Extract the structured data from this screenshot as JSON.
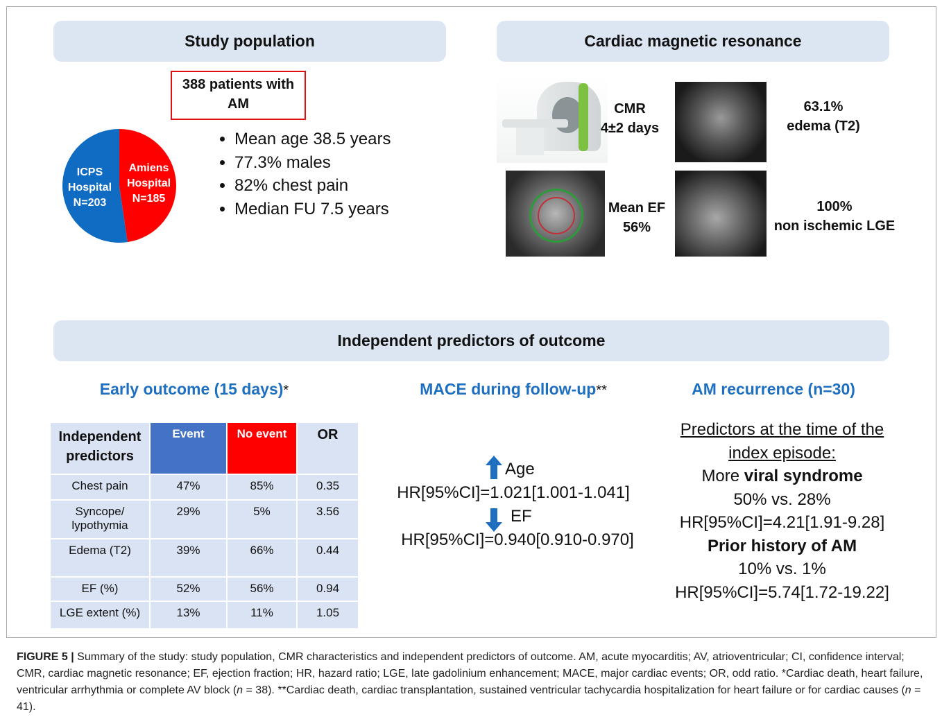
{
  "population": {
    "title": "Study population",
    "cohort": [
      "388 patients with",
      "AM"
    ],
    "pie": {
      "type": "pie",
      "slices": [
        {
          "name": "ICPS Hospital",
          "value": 203,
          "value_label": "N=203",
          "color": "#0f6cc2"
        },
        {
          "name": "Amiens Hospital",
          "value": 185,
          "value_label": "N=185",
          "color": "#ff0000"
        }
      ]
    },
    "bullets": [
      "Mean age 38.5 years",
      "77.3% males",
      "82% chest pain",
      "Median FU 7.5 years"
    ]
  },
  "cmr": {
    "title": "Cardiac magnetic resonance",
    "findings": [
      [
        "CMR",
        "4±2 days"
      ],
      [
        "63.1%",
        "edema (T2)"
      ],
      [
        "Mean EF",
        "56%"
      ],
      [
        "100%",
        "non ischemic LGE"
      ]
    ]
  },
  "predictors": {
    "title": "Independent predictors of outcome",
    "early": {
      "heading": "Early outcome (15 days)",
      "note": "*",
      "table": {
        "header": [
          "Independent predictors",
          "Event",
          "No event",
          "OR"
        ],
        "rows": [
          [
            "Chest pain",
            "47%",
            "85%",
            "0.35"
          ],
          [
            "Syncope/ lypothymia",
            "29%",
            "5%",
            "3.56"
          ],
          [
            "Edema (T2)",
            "39%",
            "66%",
            "0.44"
          ],
          [
            "EF (%)",
            "52%",
            "56%",
            "0.94"
          ],
          [
            "LGE extent (%)",
            "13%",
            "11%",
            "1.05"
          ]
        ]
      }
    },
    "mace": {
      "heading": "MACE during follow-up",
      "note": "**",
      "items": [
        {
          "label": "Age",
          "hr": "HR[95%CI]=1.021[1.001-1.041]"
        },
        {
          "label": "EF",
          "hr": "HR[95%CI]=0.940[0.910-0.970]"
        }
      ]
    },
    "recurrence": {
      "heading": "AM recurrence (n=30)",
      "predictors_heading": [
        "Predictors at the time of the",
        "index episode:"
      ],
      "factors": [
        {
          "prefix": "More ",
          "name": "viral syndrome",
          "comparison": "50% vs. 28%",
          "hr": "HR[95%CI]=4.21[1.91-9.28]"
        },
        {
          "name": "Prior history of AM",
          "comparison": "10% vs. 1%",
          "hr": "HR[95%CI]=5.74[1.72-19.22]"
        }
      ]
    }
  },
  "caption": {
    "label": "FIGURE 5 |",
    "segments": [
      " Summary of the study: study population, CMR characteristics and independent predictors of outcome. AM, acute myocarditis; AV, atrioventricular; CI, confidence interval; CMR, cardiac magnetic resonance; EF, ejection fraction; HR, hazard ratio; LGE, late gadolinium enhancement; MACE, major cardiac events; OR, odd ratio. *Cardiac death, heart failure, ventricular arrhythmia or complete AV block (",
      "n",
      " = 38). **Cardiac death, cardiac transplantation, sustained ventricular tachycardia hospitalization for heart failure or for cardiac causes (",
      "n",
      " = 41)."
    ]
  }
}
